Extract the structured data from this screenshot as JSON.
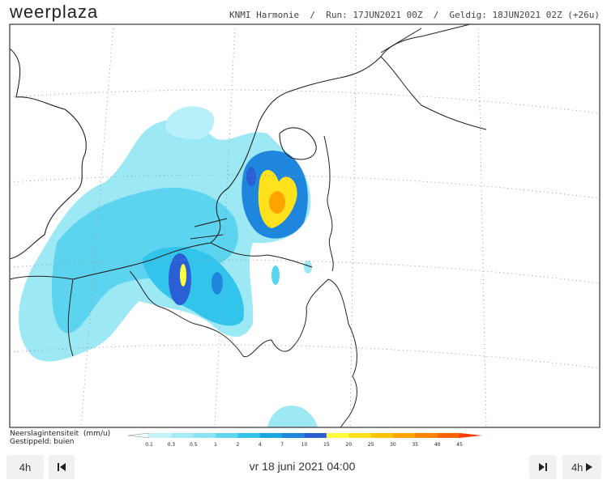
{
  "header": {
    "logo": "weerplaza",
    "model_info": "KNMI Harmonie  /  Run: 17JUN2021 00Z  /  Geldig: 18JUN2021 02Z (+26u)"
  },
  "legend": {
    "title": "Neerslagintensiteit  (mm/u)",
    "subtitle": "Gestippeld: buien",
    "ticks": [
      0.1,
      0.3,
      0.5,
      1,
      2,
      4,
      7,
      10,
      15,
      20,
      25,
      30,
      35,
      40,
      45
    ],
    "colors": [
      "#c4f2f9",
      "#a6ebf7",
      "#8be3f4",
      "#5fd5f0",
      "#33c4ec",
      "#1aa6e4",
      "#1f86de",
      "#2a5fd6",
      "#ffff40",
      "#ffe21c",
      "#ffc400",
      "#ffa300",
      "#ff8500",
      "#ff6200"
    ]
  },
  "controls": {
    "back_step": "4h",
    "current_time": "vr 18 juni 2021 04:00",
    "forward_step": "4h"
  }
}
